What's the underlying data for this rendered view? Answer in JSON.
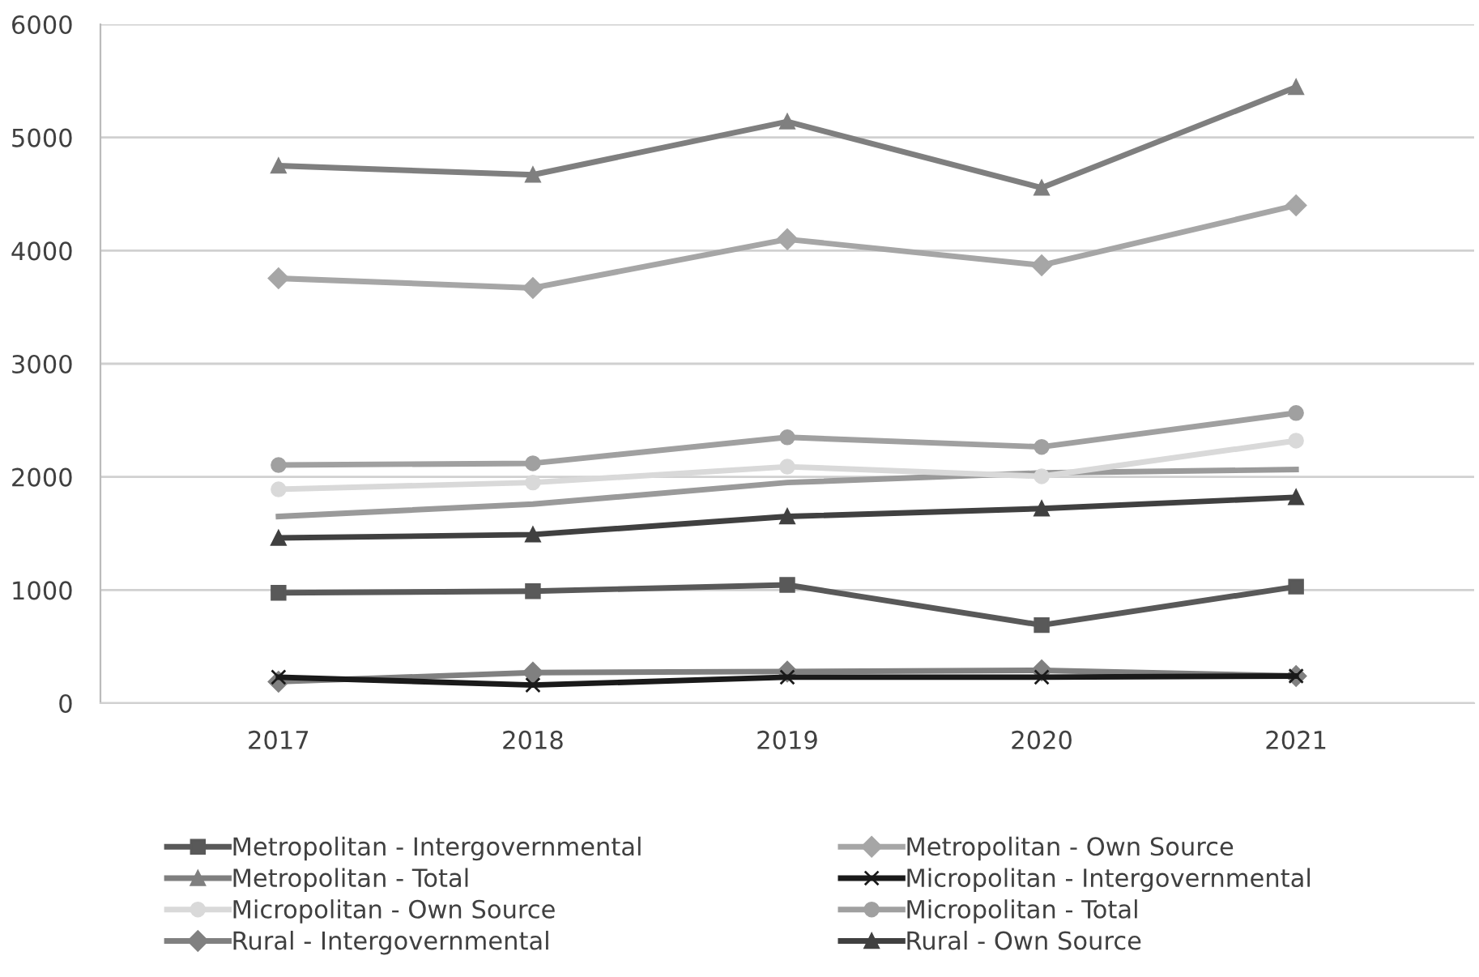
{
  "chart_data": {
    "type": "line",
    "categories": [
      "2017",
      "2018",
      "2019",
      "2020",
      "2021"
    ],
    "ylim": [
      0,
      6000
    ],
    "yticks": [
      0,
      1000,
      2000,
      3000,
      4000,
      5000,
      6000
    ],
    "grid": "y",
    "legend": "bottom",
    "line_style": "solid",
    "series": [
      {
        "name": "Metropolitan - Intergovernmental",
        "color": "#595959",
        "marker": "square",
        "values": [
          975,
          990,
          1045,
          690,
          1030
        ]
      },
      {
        "name": "Metropolitan - Own Source",
        "color": "#a6a6a6",
        "marker": "diamond",
        "values": [
          3755,
          3670,
          4100,
          3870,
          4400
        ]
      },
      {
        "name": "Metropolitan - Total",
        "color": "#7f7f7f",
        "marker": "triangle",
        "values": [
          4750,
          4670,
          5140,
          4555,
          5445
        ]
      },
      {
        "name": "Micropolitan - Intergovernmental",
        "color": "#1a1a1a",
        "marker": "cross",
        "values": [
          230,
          160,
          230,
          230,
          240
        ]
      },
      {
        "name": "Micropolitan - Own Source",
        "color": "#d9d9d9",
        "marker": "circle",
        "values": [
          1890,
          1950,
          2090,
          2005,
          2320
        ]
      },
      {
        "name": "Micropolitan - Total",
        "color": "#a0a0a0",
        "marker": "circle",
        "values": [
          2105,
          2120,
          2350,
          2265,
          2565
        ]
      },
      {
        "name": "Rural - Intergovernmental",
        "color": "#808080",
        "marker": "diamond",
        "values": [
          190,
          270,
          280,
          290,
          240
        ]
      },
      {
        "name": "Rural - Own Source",
        "color": "#404040",
        "marker": "triangle",
        "values": [
          1460,
          1490,
          1650,
          1720,
          1820
        ]
      },
      {
        "color": "#9a9a9a",
        "marker": "none",
        "values": [
          1650,
          1760,
          1950,
          2035,
          2065
        ]
      }
    ]
  }
}
